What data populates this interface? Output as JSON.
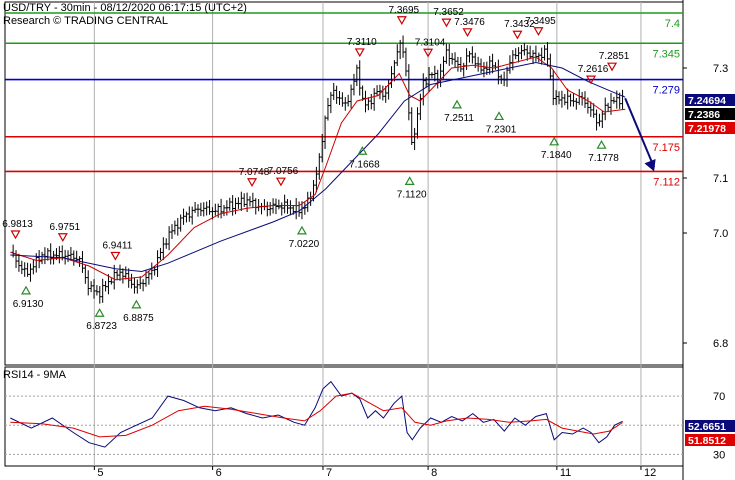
{
  "header": {
    "title": "USD/TRY - 30min - 08/12/2020 06:17:15 (UTC+2)",
    "source": "Research © TRADING CENTRAL"
  },
  "chart_data": [
    {
      "type": "candlestick",
      "title": "USD/TRY - 30min - 08/12/2020 06:17:15 (UTC+2)",
      "x_axis": {
        "tick_labels": [
          "5",
          "6",
          "7",
          "8",
          "11",
          "12"
        ]
      },
      "y_axis": {
        "range": [
          6.76,
          7.42
        ],
        "tick_labels": [
          "7.4",
          "7.3",
          "7.1",
          "7.0",
          "6.8"
        ]
      },
      "levels": [
        {
          "label": "7.4",
          "value": 7.4,
          "color": "#1e9b1e"
        },
        {
          "label": "7.345",
          "value": 7.345,
          "color": "#1e9b1e"
        },
        {
          "label": "7.279",
          "value": 7.279,
          "color": "#0000cc"
        },
        {
          "label": "7.175",
          "value": 7.175,
          "color": "#dd0000"
        },
        {
          "label": "7.112",
          "value": 7.112,
          "color": "#dd0000"
        }
      ],
      "price_tags": [
        {
          "label": "7.24694",
          "value": 7.247,
          "color": "#0a0a7a"
        },
        {
          "label": "7.2386",
          "value": 7.2386,
          "color": "#000000"
        },
        {
          "label": "7.21978",
          "value": 7.2198,
          "color": "#dd0000"
        }
      ],
      "swing_highs": [
        {
          "label": "6.9813",
          "x": 0.1,
          "value": 6.98
        },
        {
          "label": "6.9751",
          "x": 1.0,
          "value": 6.975
        },
        {
          "label": "6.9411",
          "x": 2.0,
          "value": 6.941
        },
        {
          "label": "7.0748",
          "x": 4.6,
          "value": 7.075
        },
        {
          "label": "7.0756",
          "x": 5.15,
          "value": 7.076
        },
        {
          "label": "7.3110",
          "x": 6.65,
          "value": 7.311
        },
        {
          "label": "7.3695",
          "x": 7.45,
          "value": 7.3695
        },
        {
          "label": "7.3104",
          "x": 7.95,
          "value": 7.3104
        },
        {
          "label": "7.3652",
          "x": 8.3,
          "value": 7.3652
        },
        {
          "label": "7.3476",
          "x": 8.7,
          "value": 7.3476
        },
        {
          "label": "7.3432",
          "x": 9.65,
          "value": 7.3432
        },
        {
          "label": "7.3495",
          "x": 10.05,
          "value": 7.3495
        },
        {
          "label": "7.2616",
          "x": 11.05,
          "value": 7.2616
        },
        {
          "label": "7.2851",
          "x": 11.45,
          "value": 7.2851
        }
      ],
      "swing_lows": [
        {
          "label": "6.9130",
          "x": 0.3,
          "value": 6.913
        },
        {
          "label": "6.8723",
          "x": 1.7,
          "value": 6.8723
        },
        {
          "label": "6.8875",
          "x": 2.4,
          "value": 6.8875
        },
        {
          "label": "7.0220",
          "x": 5.55,
          "value": 7.022
        },
        {
          "label": "7.1668",
          "x": 6.7,
          "value": 7.1668
        },
        {
          "label": "7.1120",
          "x": 7.6,
          "value": 7.112
        },
        {
          "label": "7.2511",
          "x": 8.5,
          "value": 7.2511
        },
        {
          "label": "7.2301",
          "x": 9.3,
          "value": 7.2301
        },
        {
          "label": "7.1840",
          "x": 10.35,
          "value": 7.184
        },
        {
          "label": "7.1778",
          "x": 11.25,
          "value": 7.1778
        }
      ],
      "close_path": [
        [
          0,
          6.965
        ],
        [
          0.3,
          6.925
        ],
        [
          0.6,
          6.96
        ],
        [
          1.0,
          6.96
        ],
        [
          1.3,
          6.955
        ],
        [
          1.5,
          6.9
        ],
        [
          1.7,
          6.89
        ],
        [
          1.9,
          6.915
        ],
        [
          2.1,
          6.93
        ],
        [
          2.4,
          6.9
        ],
        [
          2.7,
          6.93
        ],
        [
          3.0,
          6.995
        ],
        [
          3.3,
          7.03
        ],
        [
          3.6,
          7.045
        ],
        [
          3.9,
          7.04
        ],
        [
          4.2,
          7.05
        ],
        [
          4.5,
          7.06
        ],
        [
          4.8,
          7.045
        ],
        [
          5.2,
          7.05
        ],
        [
          5.5,
          7.04
        ],
        [
          5.7,
          7.06
        ],
        [
          5.9,
          7.14
        ],
        [
          6.0,
          7.22
        ],
        [
          6.15,
          7.26
        ],
        [
          6.35,
          7.23
        ],
        [
          6.5,
          7.26
        ],
        [
          6.6,
          7.3
        ],
        [
          6.72,
          7.23
        ],
        [
          6.9,
          7.245
        ],
        [
          7.0,
          7.26
        ],
        [
          7.15,
          7.25
        ],
        [
          7.3,
          7.31
        ],
        [
          7.45,
          7.35
        ],
        [
          7.55,
          7.28
        ],
        [
          7.62,
          7.15
        ],
        [
          7.72,
          7.2
        ],
        [
          7.85,
          7.27
        ],
        [
          8.0,
          7.29
        ],
        [
          8.15,
          7.28
        ],
        [
          8.3,
          7.33
        ],
        [
          8.45,
          7.31
        ],
        [
          8.6,
          7.3
        ],
        [
          8.75,
          7.33
        ],
        [
          8.9,
          7.3
        ],
        [
          9.05,
          7.3
        ],
        [
          9.2,
          7.31
        ],
        [
          9.35,
          7.27
        ],
        [
          9.5,
          7.31
        ],
        [
          9.65,
          7.33
        ],
        [
          9.8,
          7.33
        ],
        [
          10.0,
          7.32
        ],
        [
          10.2,
          7.33
        ],
        [
          10.35,
          7.24
        ],
        [
          10.5,
          7.245
        ],
        [
          10.7,
          7.24
        ],
        [
          10.9,
          7.245
        ],
        [
          11.05,
          7.22
        ],
        [
          11.2,
          7.2
        ],
        [
          11.35,
          7.235
        ],
        [
          11.5,
          7.24
        ],
        [
          11.65,
          7.245
        ]
      ],
      "moving_averages": [
        {
          "color": "#cc0000",
          "values": [
            [
              0,
              6.965
            ],
            [
              0.5,
              6.95
            ],
            [
              1.0,
              6.955
            ],
            [
              1.5,
              6.94
            ],
            [
              2.0,
              6.915
            ],
            [
              2.5,
              6.92
            ],
            [
              3.0,
              6.96
            ],
            [
              3.5,
              7.01
            ],
            [
              4.0,
              7.035
            ],
            [
              4.5,
              7.045
            ],
            [
              5.0,
              7.05
            ],
            [
              5.5,
              7.05
            ],
            [
              5.8,
              7.07
            ],
            [
              6.0,
              7.12
            ],
            [
              6.3,
              7.2
            ],
            [
              6.6,
              7.24
            ],
            [
              7.0,
              7.25
            ],
            [
              7.4,
              7.29
            ],
            [
              7.6,
              7.25
            ],
            [
              7.8,
              7.24
            ],
            [
              8.0,
              7.26
            ],
            [
              8.4,
              7.3
            ],
            [
              8.8,
              7.305
            ],
            [
              9.2,
              7.3
            ],
            [
              9.6,
              7.31
            ],
            [
              10.0,
              7.32
            ],
            [
              10.3,
              7.3
            ],
            [
              10.6,
              7.26
            ],
            [
              11.0,
              7.24
            ],
            [
              11.3,
              7.22
            ],
            [
              11.7,
              7.225
            ]
          ]
        },
        {
          "color": "#0a0a7a",
          "values": [
            [
              0,
              6.96
            ],
            [
              1.0,
              6.955
            ],
            [
              2.0,
              6.935
            ],
            [
              2.5,
              6.93
            ],
            [
              3.0,
              6.945
            ],
            [
              4.0,
              6.985
            ],
            [
              5.0,
              7.02
            ],
            [
              5.5,
              7.04
            ],
            [
              6.0,
              7.08
            ],
            [
              6.5,
              7.13
            ],
            [
              7.0,
              7.18
            ],
            [
              7.5,
              7.24
            ],
            [
              8.0,
              7.27
            ],
            [
              8.5,
              7.28
            ],
            [
              9.0,
              7.29
            ],
            [
              9.5,
              7.3
            ],
            [
              10.0,
              7.31
            ],
            [
              10.5,
              7.3
            ],
            [
              11.0,
              7.275
            ],
            [
              11.5,
              7.255
            ],
            [
              11.7,
              7.247
            ]
          ]
        }
      ],
      "forecast_arrow": {
        "from": [
          11.7,
          7.245
        ],
        "to": [
          12.25,
          7.112
        ],
        "color": "#0a0a7a"
      }
    },
    {
      "type": "line",
      "title": "RSI14 - 9MA",
      "y_axis": {
        "range": [
          22,
          90
        ],
        "tick_labels": [
          "70",
          "50",
          "30"
        ]
      },
      "level_lines": [
        70,
        50,
        30
      ],
      "price_tags": [
        {
          "label": "52.6651",
          "value": 52.67,
          "color": "#0a0a7a"
        },
        {
          "label": "51.8512",
          "value": 51.85,
          "color": "#dd0000"
        }
      ],
      "series": [
        {
          "color": "#0a0a7a",
          "values": [
            [
              0,
              55
            ],
            [
              0.4,
              48
            ],
            [
              0.8,
              55
            ],
            [
              1.2,
              45
            ],
            [
              1.5,
              38
            ],
            [
              1.8,
              35
            ],
            [
              2.1,
              45
            ],
            [
              2.4,
              50
            ],
            [
              2.7,
              55
            ],
            [
              3.0,
              70
            ],
            [
              3.3,
              67
            ],
            [
              3.6,
              62
            ],
            [
              3.9,
              60
            ],
            [
              4.2,
              62
            ],
            [
              4.5,
              58
            ],
            [
              4.8,
              55
            ],
            [
              5.1,
              57
            ],
            [
              5.4,
              52
            ],
            [
              5.6,
              50
            ],
            [
              5.8,
              62
            ],
            [
              5.95,
              75
            ],
            [
              6.1,
              80
            ],
            [
              6.3,
              70
            ],
            [
              6.5,
              72
            ],
            [
              6.65,
              68
            ],
            [
              6.8,
              55
            ],
            [
              6.95,
              60
            ],
            [
              7.1,
              55
            ],
            [
              7.3,
              65
            ],
            [
              7.45,
              70
            ],
            [
              7.55,
              45
            ],
            [
              7.65,
              40
            ],
            [
              7.8,
              48
            ],
            [
              8.0,
              55
            ],
            [
              8.2,
              52
            ],
            [
              8.4,
              56
            ],
            [
              8.6,
              53
            ],
            [
              8.8,
              58
            ],
            [
              9.0,
              52
            ],
            [
              9.2,
              54
            ],
            [
              9.4,
              46
            ],
            [
              9.6,
              55
            ],
            [
              9.8,
              50
            ],
            [
              10.0,
              56
            ],
            [
              10.2,
              58
            ],
            [
              10.35,
              40
            ],
            [
              10.5,
              45
            ],
            [
              10.7,
              44
            ],
            [
              10.9,
              48
            ],
            [
              11.05,
              45
            ],
            [
              11.2,
              38
            ],
            [
              11.35,
              42
            ],
            [
              11.5,
              50
            ],
            [
              11.65,
              52.67
            ]
          ]
        },
        {
          "color": "#dd0000",
          "values": [
            [
              0,
              52
            ],
            [
              0.6,
              51
            ],
            [
              1.2,
              48
            ],
            [
              1.7,
              42
            ],
            [
              2.2,
              43
            ],
            [
              2.7,
              50
            ],
            [
              3.2,
              60
            ],
            [
              3.7,
              63
            ],
            [
              4.2,
              61
            ],
            [
              4.7,
              58
            ],
            [
              5.2,
              55
            ],
            [
              5.6,
              53
            ],
            [
              5.9,
              60
            ],
            [
              6.2,
              70
            ],
            [
              6.5,
              72
            ],
            [
              6.8,
              66
            ],
            [
              7.1,
              60
            ],
            [
              7.45,
              62
            ],
            [
              7.7,
              52
            ],
            [
              8.0,
              50
            ],
            [
              8.3,
              53
            ],
            [
              8.7,
              55
            ],
            [
              9.1,
              54
            ],
            [
              9.5,
              52
            ],
            [
              9.9,
              53
            ],
            [
              10.2,
              54
            ],
            [
              10.5,
              48
            ],
            [
              10.8,
              46
            ],
            [
              11.1,
              44
            ],
            [
              11.4,
              46
            ],
            [
              11.65,
              51.85
            ]
          ]
        }
      ]
    }
  ]
}
